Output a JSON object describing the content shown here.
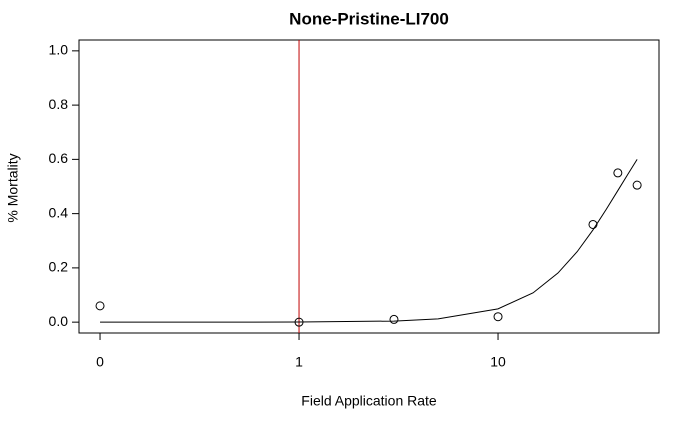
{
  "chart_data": {
    "type": "scatter",
    "title": "None-Pristine-LI700",
    "x_label": "Field Application Rate",
    "y_label": "% Mortality",
    "xlog": true,
    "xlim": [
      0.0784,
      64.4
    ],
    "ylim": [
      -0.04,
      1.04
    ],
    "xticks": [
      {
        "value": 0.1,
        "label": "0"
      },
      1,
      10
    ],
    "yticks": [
      {
        "value": 0,
        "label": "0.0"
      },
      {
        "value": 0.2,
        "label": "0.2"
      },
      {
        "value": 0.4,
        "label": "0.4"
      },
      {
        "value": 0.6,
        "label": "0.6"
      },
      {
        "value": 0.8,
        "label": "0.8"
      },
      {
        "value": 1,
        "label": "1.0"
      }
    ],
    "vline": 1,
    "vline_color": "#c00000",
    "series": [
      {
        "style": "points",
        "color": "#000000",
        "x": [
          0.1,
          1,
          3,
          10,
          30,
          40,
          50
        ],
        "values": [
          0.06,
          0,
          0.01,
          0.02,
          0.36,
          0.55,
          0.505
        ]
      },
      {
        "style": "line",
        "color": "#000000",
        "x": [
          0.1,
          1,
          3,
          5,
          10,
          15,
          20,
          25,
          30,
          35,
          40,
          45,
          50
        ],
        "values": [
          0,
          0.0004,
          0.004,
          0.012,
          0.049,
          0.108,
          0.181,
          0.26,
          0.34,
          0.416,
          0.485,
          0.546,
          0.6
        ]
      }
    ]
  }
}
